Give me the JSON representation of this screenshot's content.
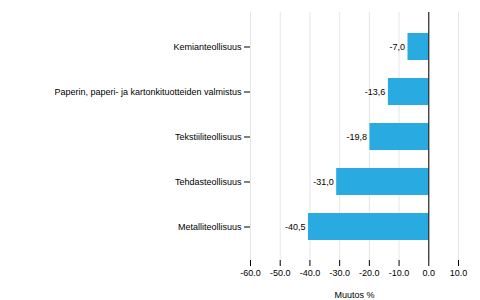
{
  "chart_data": {
    "type": "bar",
    "orientation": "horizontal",
    "categories": [
      "Metalliteollisuus",
      "Tehdasteollisuus",
      "Tekstiiliteollisuus",
      "Paperin, paperi- ja kartonkituotteiden valmistus",
      "Kemianteollisuus"
    ],
    "values": [
      -40.5,
      -31.0,
      -19.8,
      -13.6,
      -7.0
    ],
    "value_labels": [
      "-40,5",
      "-31,0",
      "-19,8",
      "-13,6",
      "-7,0"
    ],
    "data_labels": true,
    "color": "#29abe2",
    "xlabel": "Muutos %",
    "xlim": [
      -60.0,
      10.0
    ],
    "xticks": [
      {
        "value": -60,
        "label": "-60.0"
      },
      {
        "value": -50,
        "label": "-50.0"
      },
      {
        "value": -40,
        "label": "-40.0"
      },
      {
        "value": -30,
        "label": "-30.0"
      },
      {
        "value": -20,
        "label": "-20.0"
      },
      {
        "value": -10,
        "label": "-10.0"
      },
      {
        "value": 0,
        "label": "0.0"
      },
      {
        "value": 10,
        "label": "10.0"
      }
    ],
    "grid": true
  }
}
